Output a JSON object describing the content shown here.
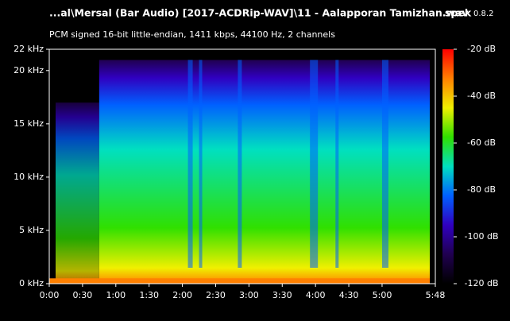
{
  "chart_data": {
    "type": "spectrogram",
    "title": "...al\\Mersal (Bar Audio) [2017-ACDRip-WAV]\\11 - Aalapporan Tamizhan.wav",
    "app_name": "spek",
    "app_version": "0.8.2",
    "subtitle": "PCM signed 16-bit little-endian, 1411 kbps, 44100 Hz, 2 channels",
    "xlim": [
      0,
      348
    ],
    "xticks": [
      {
        "value": 0,
        "label": "0:00"
      },
      {
        "value": 30,
        "label": "0:30"
      },
      {
        "value": 60,
        "label": "1:00"
      },
      {
        "value": 90,
        "label": "1:30"
      },
      {
        "value": 120,
        "label": "2:00"
      },
      {
        "value": 150,
        "label": "2:30"
      },
      {
        "value": 180,
        "label": "3:00"
      },
      {
        "value": 210,
        "label": "3:30"
      },
      {
        "value": 240,
        "label": "4:00"
      },
      {
        "value": 270,
        "label": "4:30"
      },
      {
        "value": 300,
        "label": "5:00"
      },
      {
        "value": 348,
        "label": "5:48"
      }
    ],
    "ylim": [
      0,
      22
    ],
    "yticks": [
      {
        "value": 0,
        "label": "0 kHz"
      },
      {
        "value": 5,
        "label": "5 kHz"
      },
      {
        "value": 10,
        "label": "10 kHz"
      },
      {
        "value": 15,
        "label": "15 kHz"
      },
      {
        "value": 20,
        "label": "20 kHz"
      },
      {
        "value": 22,
        "label": "22 kHz"
      }
    ],
    "clim": [
      -120,
      -20
    ],
    "cticks": [
      {
        "value": -20,
        "label": "-20 dB"
      },
      {
        "value": -40,
        "label": "-40 dB"
      },
      {
        "value": -60,
        "label": "-60 dB"
      },
      {
        "value": -80,
        "label": "-80 dB"
      },
      {
        "value": -100,
        "label": "-100 dB"
      },
      {
        "value": -120,
        "label": "-120 dB"
      }
    ],
    "colormap": [
      "#ff0000",
      "#ff8000",
      "#f0f000",
      "#30e000",
      "#00e0c0",
      "#0060ff",
      "#3000c0",
      "#200050",
      "#000000"
    ]
  }
}
